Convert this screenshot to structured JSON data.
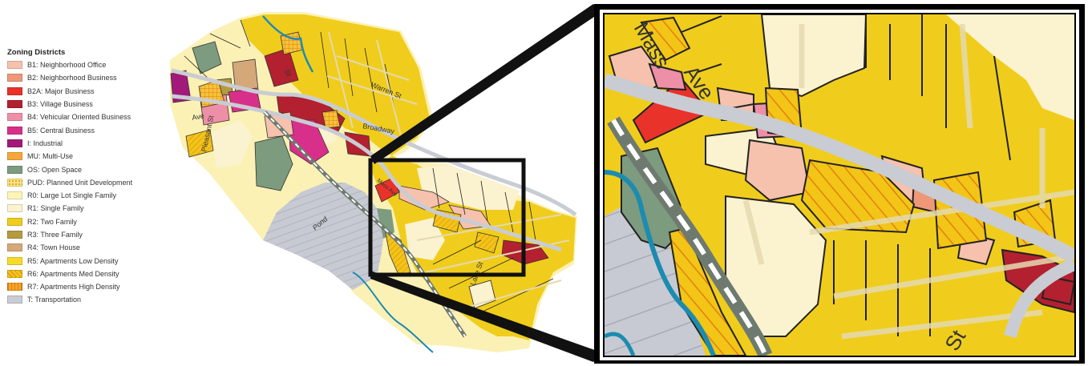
{
  "legend": {
    "title": "Zoning Districts",
    "items": [
      {
        "label": "B1: Neighborhood Office",
        "color": "#f6c1ad",
        "pattern": "solid"
      },
      {
        "label": "B2: Neighborhood Business",
        "color": "#ef9879",
        "pattern": "solid"
      },
      {
        "label": "B2A: Major Business",
        "color": "#e8322a",
        "pattern": "solid"
      },
      {
        "label": "B3: Village Business",
        "color": "#b3202f",
        "pattern": "solid"
      },
      {
        "label": "B4: Vehicular Oriented Business",
        "color": "#ee8fa8",
        "pattern": "solid"
      },
      {
        "label": "B5: Central Business",
        "color": "#d8308a",
        "pattern": "solid"
      },
      {
        "label": "I: Industrial",
        "color": "#a3197a",
        "pattern": "solid"
      },
      {
        "label": "MU: Multi-Use",
        "color": "#f4a83a",
        "pattern": "solid"
      },
      {
        "label": "OS: Open Space",
        "color": "#7d9b7f",
        "pattern": "solid"
      },
      {
        "label": "PUD: Planned Unit Development",
        "color": "#fbe88e",
        "pattern": "dots"
      },
      {
        "label": "R0: Large Lot Single Family",
        "color": "#fdf5b8",
        "pattern": "solid"
      },
      {
        "label": "R1: Single Family",
        "color": "#fbf2cf",
        "pattern": "solid"
      },
      {
        "label": "R2: Two Family",
        "color": "#f0cd1c",
        "pattern": "solid"
      },
      {
        "label": "R3: Three Family",
        "color": "#b59a3f",
        "pattern": "solid"
      },
      {
        "label": "R4: Town House",
        "color": "#d5a87a",
        "pattern": "solid"
      },
      {
        "label": "R5: Apartments Low Density",
        "color": "#f6db2a",
        "pattern": "solid"
      },
      {
        "label": "R6: Apartments Med Density",
        "color": "#f2c517",
        "pattern": "hatch"
      },
      {
        "label": "R7: Apartments High Density",
        "color": "#f4a52a",
        "pattern": "grid"
      },
      {
        "label": "T: Transportation",
        "color": "#c9ccd3",
        "pattern": "solid"
      }
    ]
  },
  "overview_map": {
    "street_labels": [
      "Warren St",
      "Broadway",
      "Pleasant St",
      "Pond",
      "Lake St",
      "Ave",
      "St",
      "Mass Ave"
    ]
  },
  "zoom_map": {
    "street_labels": [
      "Mass",
      "Ave",
      "St"
    ]
  }
}
